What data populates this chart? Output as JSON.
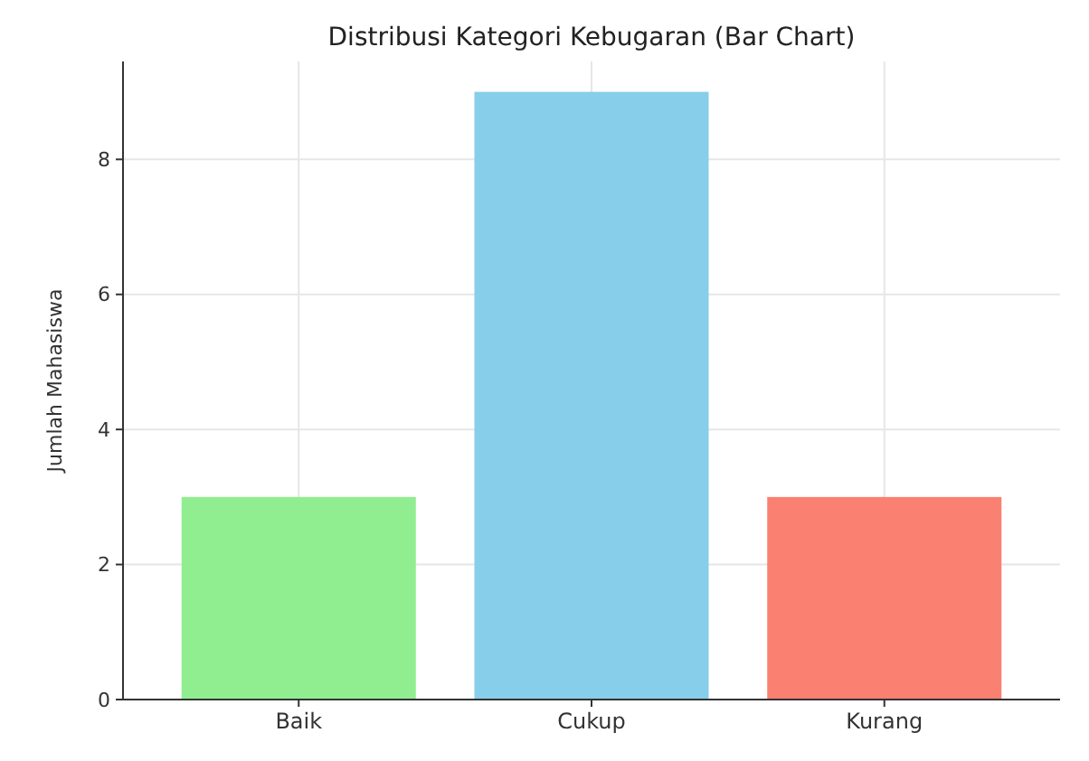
{
  "chart_data": {
    "type": "bar",
    "title": "Distribusi Kategori Kebugaran (Bar Chart)",
    "ylabel": "Jumlah Mahasiswa",
    "categories": [
      "Baik",
      "Cukup",
      "Kurang"
    ],
    "values": [
      3,
      9,
      3
    ],
    "colors": [
      "#90ee90",
      "#87ceeb",
      "#fa8072"
    ],
    "ylim": [
      0,
      9.45
    ],
    "yticks": [
      0,
      2,
      4,
      6,
      8
    ],
    "grid": true
  }
}
